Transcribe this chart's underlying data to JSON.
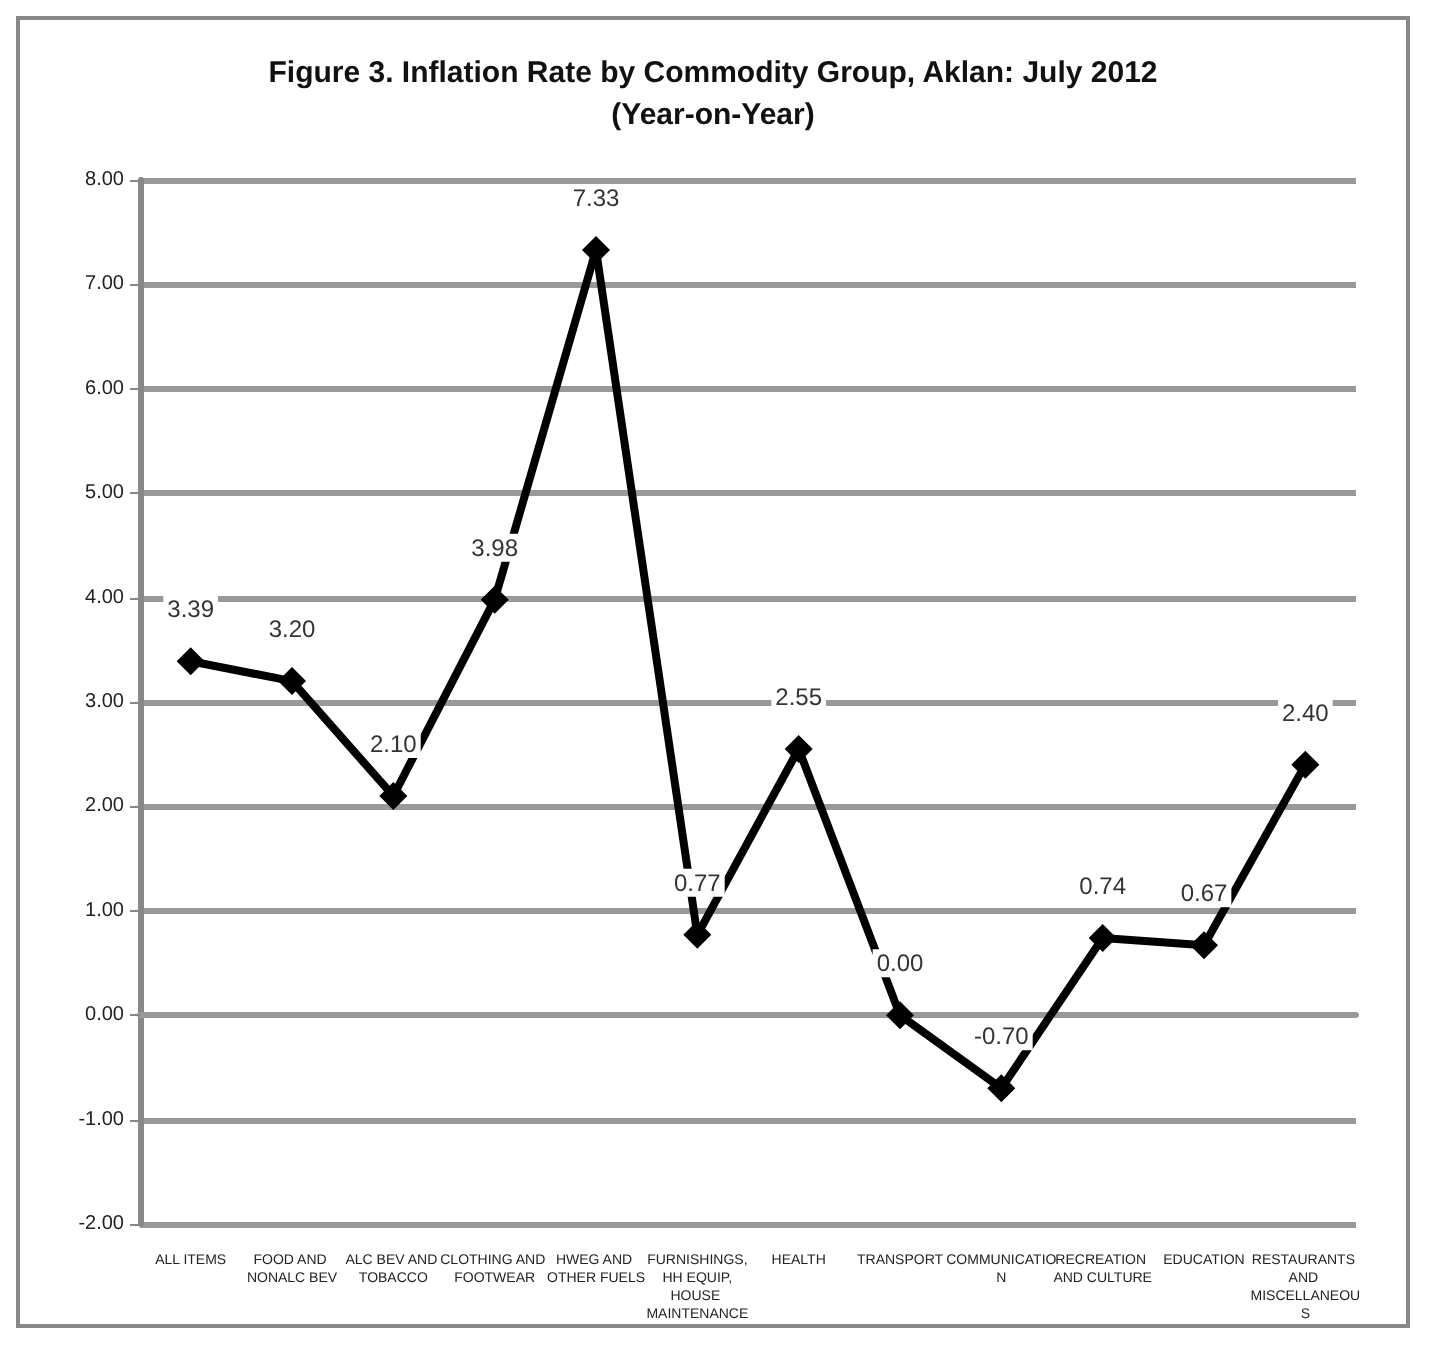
{
  "chart_data": {
    "type": "line",
    "title": "Figure 3. Inflation Rate by Commodity Group, Aklan: July 2012",
    "subtitle": "(Year-on-Year)",
    "categories": [
      "ALL ITEMS",
      "FOOD AND NONALC BEV",
      "ALC BEV AND TOBACCO",
      "CLOTHING AND FOOTWEAR",
      "HWEG AND OTHER FUELS",
      "FURNISHINGS,HH EQUIP,HOUSE MAINTENANCE",
      "HEALTH",
      "TRANSPORT",
      "COMMUNICATION",
      "RECREATION AND CULTURE",
      "EDUCATION",
      "RESTAURANTS AND MISCELLANEOUS"
    ],
    "series": [
      {
        "color": "#000000",
        "values": [
          3.39,
          3.2,
          2.1,
          3.98,
          7.33,
          0.77,
          2.55,
          0,
          -0.7,
          0.74,
          0.67,
          2.4
        ],
        "value_labels": [
          "3.39",
          "3.20",
          "2.10",
          "3.98",
          "7.33",
          "0.77",
          "2.55",
          "0.00",
          "-0.70",
          "0.74",
          "0.67",
          "2.40"
        ]
      }
    ],
    "ylim": [
      -2,
      8
    ],
    "yticks": [
      {
        "value": -2,
        "label": "-2.00"
      },
      {
        "value": -1,
        "label": "-1.00"
      },
      {
        "value": 0,
        "label": "0.00"
      },
      {
        "value": 1,
        "label": "1.00"
      },
      {
        "value": 2,
        "label": "2.00"
      },
      {
        "value": 3,
        "label": "3.00"
      },
      {
        "value": 4,
        "label": "4.00"
      },
      {
        "value": 5,
        "label": "5.00"
      },
      {
        "value": 6,
        "label": "6.00"
      },
      {
        "value": 7,
        "label": "7.00"
      },
      {
        "value": 8,
        "label": "8.00"
      }
    ],
    "grid": "y",
    "marker": "diamond",
    "line_style": "solid"
  }
}
